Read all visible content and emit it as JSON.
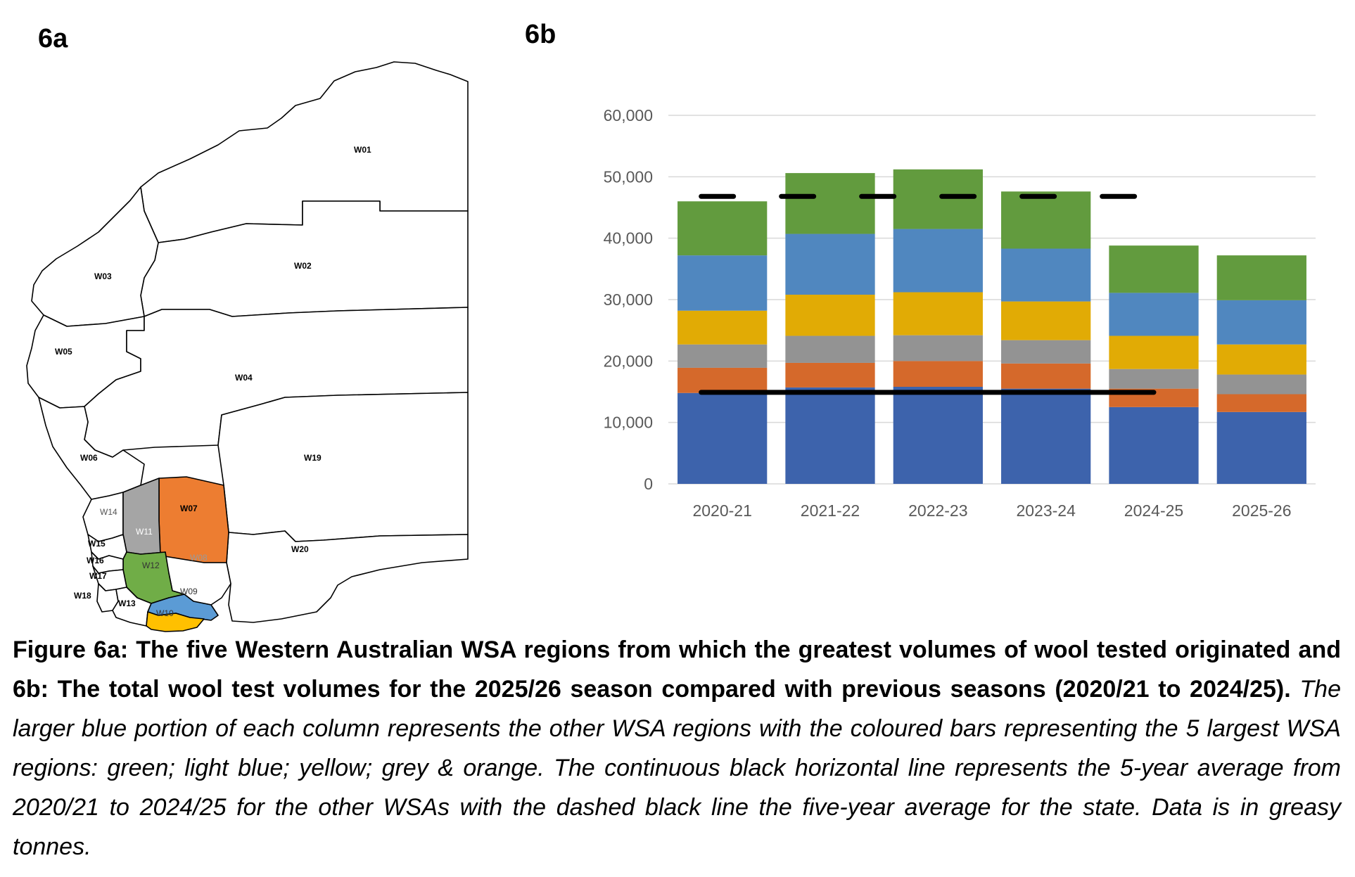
{
  "panel_a_label": "6a",
  "panel_b_label": "6b",
  "map": {
    "regions": [
      {
        "id": "W01",
        "fill": "#ffffff"
      },
      {
        "id": "W02",
        "fill": "#ffffff"
      },
      {
        "id": "W03",
        "fill": "#ffffff"
      },
      {
        "id": "W04",
        "fill": "#ffffff"
      },
      {
        "id": "W05",
        "fill": "#ffffff"
      },
      {
        "id": "W06",
        "fill": "#ffffff"
      },
      {
        "id": "W07",
        "fill": "#ed7d31"
      },
      {
        "id": "W08",
        "fill": "#ffffff"
      },
      {
        "id": "W09",
        "fill": "#5b9bd5"
      },
      {
        "id": "W10",
        "fill": "#ffc000"
      },
      {
        "id": "W11",
        "fill": "#a5a5a5"
      },
      {
        "id": "W12",
        "fill": "#70ad47"
      },
      {
        "id": "W13",
        "fill": "#ffffff"
      },
      {
        "id": "W14",
        "fill": "#ffffff"
      },
      {
        "id": "W15",
        "fill": "#ffffff"
      },
      {
        "id": "W16",
        "fill": "#ffffff"
      },
      {
        "id": "W17",
        "fill": "#ffffff"
      },
      {
        "id": "W18",
        "fill": "#ffffff"
      },
      {
        "id": "W19",
        "fill": "#ffffff"
      },
      {
        "id": "W20",
        "fill": "#ffffff"
      }
    ]
  },
  "chart_data": {
    "type": "bar",
    "stacked": true,
    "categories": [
      "2020-21",
      "2021-22",
      "2022-23",
      "2023-24",
      "2024-25",
      "2025-26"
    ],
    "ylim": [
      0,
      60000
    ],
    "yticks": [
      "0",
      "10,000",
      "20,000",
      "30,000",
      "40,000",
      "50,000",
      "60,000"
    ],
    "ytick_values": [
      0,
      10000,
      20000,
      30000,
      40000,
      50000,
      60000
    ],
    "grid": true,
    "series": [
      {
        "color": "#3d63ac",
        "values": [
          14800,
          15700,
          15800,
          15500,
          12500,
          11700
        ]
      },
      {
        "color": "#d5692b",
        "values": [
          4100,
          4000,
          4200,
          4100,
          3000,
          2900
        ]
      },
      {
        "color": "#939393",
        "values": [
          3800,
          4400,
          4200,
          3800,
          3200,
          3200
        ]
      },
      {
        "color": "#e1ab05",
        "values": [
          5500,
          6700,
          7000,
          6300,
          5400,
          4900
        ]
      },
      {
        "color": "#5087bf",
        "values": [
          9000,
          9900,
          10300,
          8600,
          7000,
          7200
        ]
      },
      {
        "color": "#629b3e",
        "values": [
          8800,
          9900,
          9700,
          9300,
          7700,
          7300
        ]
      }
    ],
    "other_wsa_5yr_average": 14900,
    "state_5yr_average": 46800
  },
  "caption": {
    "bold": "Figure 6a: The five Western Australian WSA regions from which the greatest volumes of wool tested originated and 6b: The total wool test volumes for the 2025/26 season compared with previous seasons (2020/21 to 2024/25).",
    "italic": "The larger blue portion of each column represents the other WSA regions with the coloured bars representing the 5 largest WSA regions: green; light blue; yellow; grey & orange. The continuous black horizontal line represents the 5-year average from 2020/21 to 2024/25 for the other WSAs with the dashed black line the five-year average for the state. Data is in greasy tonnes."
  }
}
